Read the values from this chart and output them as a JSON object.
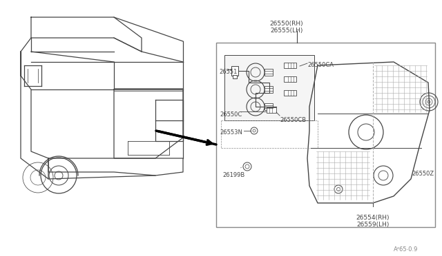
{
  "bg_color": "#ffffff",
  "line_color": "#444444",
  "text_color": "#444444",
  "fig_width": 6.4,
  "fig_height": 3.72,
  "dpi": 100,
  "watermark": "A²65⋅0.9",
  "labels": {
    "26550_rh_lh": "26550(RH)\n26555(LH)",
    "26550CA": "26550CA",
    "26551": "26551",
    "26550C": "26550C",
    "26550CB": "26550CB",
    "26553N": "26553N",
    "26199B": "26199B",
    "26550Z": "26550Z",
    "26554_rh_lh": "26554(RH)\n26559(LH)"
  }
}
